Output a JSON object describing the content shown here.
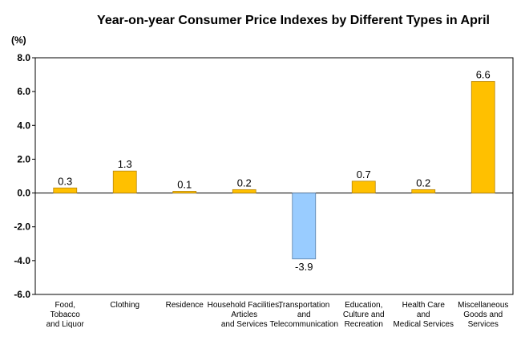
{
  "chart_data": {
    "type": "bar",
    "title": "Year-on-year Consumer Price Indexes by Different Types in April",
    "ylabel": "(%)",
    "xlabel": "",
    "ylim": [
      -6.0,
      8.0
    ],
    "yticks": [
      "8.0",
      "6.0",
      "4.0",
      "2.0",
      "0.0",
      "-2.0",
      "-4.0",
      "-6.0"
    ],
    "grid": false,
    "legend": "none",
    "categories": [
      [
        "Food,",
        "Tobacco",
        "and Liquor"
      ],
      [
        "Clothing"
      ],
      [
        "Residence"
      ],
      [
        "Household Facilities,",
        "Articles",
        "and Services"
      ],
      [
        "Transportation",
        "and",
        "Telecommunication"
      ],
      [
        "Education,",
        "Culture and",
        "Recreation"
      ],
      [
        "Health Care",
        "and",
        "Medical Services"
      ],
      [
        "Miscellaneous",
        "Goods and",
        "Services"
      ]
    ],
    "values": [
      0.3,
      1.3,
      0.1,
      0.2,
      -3.9,
      0.7,
      0.2,
      6.6
    ],
    "data_labels": [
      "0.3",
      "1.3",
      "0.1",
      "0.2",
      "-3.9",
      "0.7",
      "0.2",
      "6.6"
    ],
    "colors": {
      "positive": "#FFC000",
      "positive_border": "#B8860B",
      "negative": "#99CCFF",
      "negative_border": "#5A7FA8",
      "axis": "#000000"
    }
  }
}
